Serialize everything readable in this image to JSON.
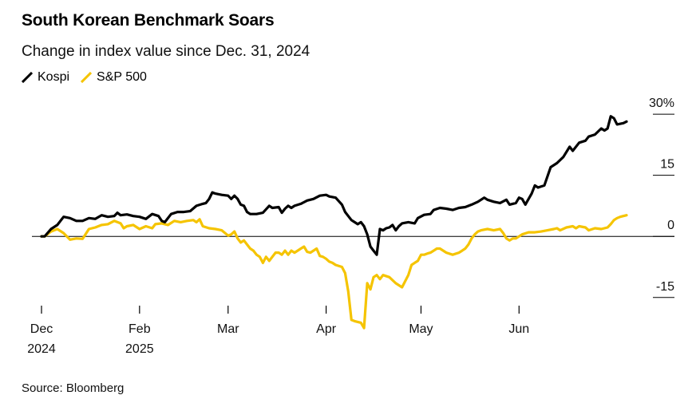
{
  "header": {
    "title": "South Korean Benchmark Soars",
    "subtitle": "Change in index value since Dec. 31, 2024"
  },
  "footer": {
    "source": "Source: Bloomberg"
  },
  "colors": {
    "kospi": "#000000",
    "sp500": "#f5c400",
    "axis": "#000000"
  },
  "chart_data": {
    "type": "line",
    "title": "South Korean Benchmark Soars",
    "subtitle": "Change in index value since Dec. 31, 2024",
    "xlabel": "",
    "ylabel": "",
    "ylim": [
      -17,
      31
    ],
    "y_ticks": [
      {
        "value": 30,
        "label": "30%"
      },
      {
        "value": 15,
        "label": "15"
      },
      {
        "value": 0,
        "label": "0"
      },
      {
        "value": -15,
        "label": "-15"
      }
    ],
    "x_ticks": [
      {
        "value": 0,
        "label": "Dec",
        "sublabel": "2024"
      },
      {
        "value": 31,
        "label": "Feb",
        "sublabel": "2025"
      },
      {
        "value": 59,
        "label": "Mar",
        "sublabel": ""
      },
      {
        "value": 90,
        "label": "Apr",
        "sublabel": ""
      },
      {
        "value": 120,
        "label": "May",
        "sublabel": ""
      },
      {
        "value": 151,
        "label": "Jun",
        "sublabel": ""
      }
    ],
    "x_domain": [
      0,
      185
    ],
    "x_units": "days since Dec. 31, 2024",
    "legend": "top-left",
    "series": [
      {
        "name": "Kospi",
        "color": "#000000",
        "points": [
          [
            0,
            0
          ],
          [
            1,
            0
          ],
          [
            3,
            1.8
          ],
          [
            5,
            2.8
          ],
          [
            7,
            4.8
          ],
          [
            9,
            4.5
          ],
          [
            11,
            3.8
          ],
          [
            13,
            3.8
          ],
          [
            15,
            4.5
          ],
          [
            17,
            4.3
          ],
          [
            19,
            5.2
          ],
          [
            21,
            4.8
          ],
          [
            23,
            5.0
          ],
          [
            24,
            5.8
          ],
          [
            25,
            5.2
          ],
          [
            27,
            5.4
          ],
          [
            29,
            5.0
          ],
          [
            31,
            4.8
          ],
          [
            33,
            4.3
          ],
          [
            35,
            5.5
          ],
          [
            37,
            5.0
          ],
          [
            38,
            3.8
          ],
          [
            39,
            3.5
          ],
          [
            41,
            5.5
          ],
          [
            43,
            6.0
          ],
          [
            45,
            6.0
          ],
          [
            47,
            6.2
          ],
          [
            49,
            7.5
          ],
          [
            51,
            8.0
          ],
          [
            52,
            8.2
          ],
          [
            53,
            9.2
          ],
          [
            54,
            10.8
          ],
          [
            55,
            10.5
          ],
          [
            57,
            10.2
          ],
          [
            59,
            10.0
          ],
          [
            60,
            9.2
          ],
          [
            61,
            10.0
          ],
          [
            62,
            9.2
          ],
          [
            63,
            7.8
          ],
          [
            64,
            7.5
          ],
          [
            65,
            6.0
          ],
          [
            66,
            5.5
          ],
          [
            68,
            5.5
          ],
          [
            70,
            5.8
          ],
          [
            72,
            7.5
          ],
          [
            73,
            7.0
          ],
          [
            75,
            7.2
          ],
          [
            76,
            5.8
          ],
          [
            77,
            6.8
          ],
          [
            78,
            7.5
          ],
          [
            79,
            7.0
          ],
          [
            80,
            7.5
          ],
          [
            82,
            8.0
          ],
          [
            84,
            8.8
          ],
          [
            86,
            9.2
          ],
          [
            88,
            10.0
          ],
          [
            90,
            10.2
          ],
          [
            91,
            9.8
          ],
          [
            93,
            9.5
          ],
          [
            95,
            7.8
          ],
          [
            96,
            6.0
          ],
          [
            97,
            5.0
          ],
          [
            98,
            4.0
          ],
          [
            99,
            3.5
          ],
          [
            100,
            3.0
          ],
          [
            101,
            3.5
          ],
          [
            102,
            2.5
          ],
          [
            103,
            0.5
          ],
          [
            104,
            -2.5
          ],
          [
            105,
            -3.5
          ],
          [
            106,
            -4.5
          ],
          [
            107,
            1.8
          ],
          [
            108,
            1.5
          ],
          [
            109,
            2.0
          ],
          [
            110,
            2.2
          ],
          [
            111,
            2.8
          ],
          [
            112,
            1.5
          ],
          [
            113,
            2.5
          ],
          [
            114,
            3.2
          ],
          [
            116,
            3.5
          ],
          [
            118,
            3.2
          ],
          [
            119,
            4.5
          ],
          [
            121,
            5.3
          ],
          [
            123,
            5.5
          ],
          [
            124,
            6.5
          ],
          [
            126,
            7.0
          ],
          [
            128,
            6.8
          ],
          [
            130,
            6.5
          ],
          [
            132,
            7.0
          ],
          [
            134,
            7.2
          ],
          [
            136,
            7.8
          ],
          [
            138,
            8.5
          ],
          [
            140,
            9.5
          ],
          [
            141,
            9.0
          ],
          [
            143,
            8.5
          ],
          [
            145,
            8.2
          ],
          [
            147,
            9.0
          ],
          [
            148,
            7.8
          ],
          [
            150,
            8.2
          ],
          [
            151,
            9.5
          ],
          [
            152,
            9.2
          ],
          [
            153,
            7.8
          ],
          [
            155,
            10.5
          ],
          [
            156,
            12.5
          ],
          [
            157,
            12.0
          ],
          [
            159,
            12.5
          ],
          [
            161,
            17.0
          ],
          [
            163,
            18.0
          ],
          [
            165,
            19.5
          ],
          [
            167,
            22.0
          ],
          [
            168,
            21.0
          ],
          [
            170,
            23.0
          ],
          [
            172,
            23.5
          ],
          [
            173,
            24.5
          ],
          [
            175,
            25.0
          ],
          [
            177,
            26.5
          ],
          [
            178,
            26.0
          ],
          [
            179,
            26.5
          ],
          [
            180,
            29.5
          ],
          [
            181,
            29.0
          ],
          [
            182,
            27.5
          ],
          [
            184,
            27.8
          ],
          [
            185,
            28.2
          ]
        ]
      },
      {
        "name": "S&P 500",
        "color": "#f5c400",
        "points": [
          [
            0,
            0
          ],
          [
            1,
            0
          ],
          [
            3,
            1.2
          ],
          [
            5,
            1.8
          ],
          [
            7,
            0.8
          ],
          [
            9,
            -0.8
          ],
          [
            11,
            -0.5
          ],
          [
            13,
            -0.6
          ],
          [
            15,
            1.8
          ],
          [
            17,
            2.2
          ],
          [
            19,
            2.8
          ],
          [
            21,
            3.0
          ],
          [
            23,
            3.8
          ],
          [
            25,
            3.2
          ],
          [
            26,
            2.0
          ],
          [
            27,
            2.5
          ],
          [
            29,
            2.8
          ],
          [
            31,
            1.8
          ],
          [
            33,
            2.5
          ],
          [
            35,
            2.0
          ],
          [
            36,
            3.0
          ],
          [
            38,
            3.2
          ],
          [
            40,
            2.8
          ],
          [
            42,
            3.8
          ],
          [
            44,
            3.5
          ],
          [
            46,
            3.8
          ],
          [
            48,
            4.0
          ],
          [
            49,
            3.5
          ],
          [
            50,
            4.2
          ],
          [
            51,
            2.5
          ],
          [
            53,
            2.0
          ],
          [
            55,
            1.8
          ],
          [
            57,
            1.5
          ],
          [
            59,
            0.2
          ],
          [
            60,
            0.5
          ],
          [
            61,
            1.2
          ],
          [
            62,
            -0.5
          ],
          [
            63,
            -1.5
          ],
          [
            64,
            -1.0
          ],
          [
            65,
            -2.0
          ],
          [
            66,
            -3.0
          ],
          [
            67,
            -3.5
          ],
          [
            68,
            -4.5
          ],
          [
            69,
            -5.0
          ],
          [
            70,
            -6.5
          ],
          [
            71,
            -5.0
          ],
          [
            72,
            -6.0
          ],
          [
            73,
            -5.0
          ],
          [
            74,
            -4.0
          ],
          [
            75,
            -4.0
          ],
          [
            76,
            -4.5
          ],
          [
            77,
            -3.5
          ],
          [
            78,
            -4.5
          ],
          [
            79,
            -3.5
          ],
          [
            80,
            -4.0
          ],
          [
            81,
            -3.5
          ],
          [
            82,
            -3.0
          ],
          [
            83,
            -2.5
          ],
          [
            84,
            -3.8
          ],
          [
            85,
            -4.0
          ],
          [
            86,
            -3.5
          ],
          [
            87,
            -3.0
          ],
          [
            88,
            -4.8
          ],
          [
            89,
            -5.0
          ],
          [
            90,
            -5.5
          ],
          [
            91,
            -6.2
          ],
          [
            92,
            -6.5
          ],
          [
            93,
            -7.0
          ],
          [
            95,
            -7.5
          ],
          [
            96,
            -9.0
          ],
          [
            97,
            -13.5
          ],
          [
            98,
            -20.5
          ],
          [
            99,
            -20.8
          ],
          [
            100,
            -21.0
          ],
          [
            101,
            -21.2
          ],
          [
            102,
            -22.5
          ],
          [
            103,
            -11.5
          ],
          [
            104,
            -13.0
          ],
          [
            105,
            -10.0
          ],
          [
            106,
            -9.5
          ],
          [
            107,
            -10.5
          ],
          [
            108,
            -9.5
          ],
          [
            110,
            -10.0
          ],
          [
            112,
            -11.5
          ],
          [
            114,
            -12.5
          ],
          [
            116,
            -9.5
          ],
          [
            117,
            -7.0
          ],
          [
            118,
            -6.5
          ],
          [
            119,
            -6.0
          ],
          [
            120,
            -4.5
          ],
          [
            121,
            -4.5
          ],
          [
            122,
            -4.2
          ],
          [
            123,
            -4.0
          ],
          [
            124,
            -3.5
          ],
          [
            125,
            -3.0
          ],
          [
            126,
            -3.0
          ],
          [
            128,
            -4.0
          ],
          [
            130,
            -4.5
          ],
          [
            132,
            -4.0
          ],
          [
            133,
            -3.5
          ],
          [
            134,
            -3.0
          ],
          [
            135,
            -2.0
          ],
          [
            136,
            -0.5
          ],
          [
            137,
            0.5
          ],
          [
            138,
            1.2
          ],
          [
            139,
            1.5
          ],
          [
            141,
            1.8
          ],
          [
            143,
            1.5
          ],
          [
            145,
            1.8
          ],
          [
            146,
            0.8
          ],
          [
            147,
            -0.5
          ],
          [
            148,
            -1.0
          ],
          [
            149,
            -0.5
          ],
          [
            150,
            -0.5
          ],
          [
            152,
            0.5
          ],
          [
            154,
            1.0
          ],
          [
            156,
            1.0
          ],
          [
            158,
            1.2
          ],
          [
            160,
            1.5
          ],
          [
            162,
            1.8
          ],
          [
            163,
            2.0
          ],
          [
            164,
            1.5
          ],
          [
            166,
            2.2
          ],
          [
            168,
            2.5
          ],
          [
            169,
            2.0
          ],
          [
            170,
            2.5
          ],
          [
            172,
            2.2
          ],
          [
            173,
            1.5
          ],
          [
            175,
            2.0
          ],
          [
            177,
            1.8
          ],
          [
            179,
            2.2
          ],
          [
            180,
            3.0
          ],
          [
            181,
            4.0
          ],
          [
            182,
            4.5
          ],
          [
            183,
            4.8
          ],
          [
            184,
            5.0
          ],
          [
            185,
            5.2
          ]
        ]
      }
    ]
  }
}
